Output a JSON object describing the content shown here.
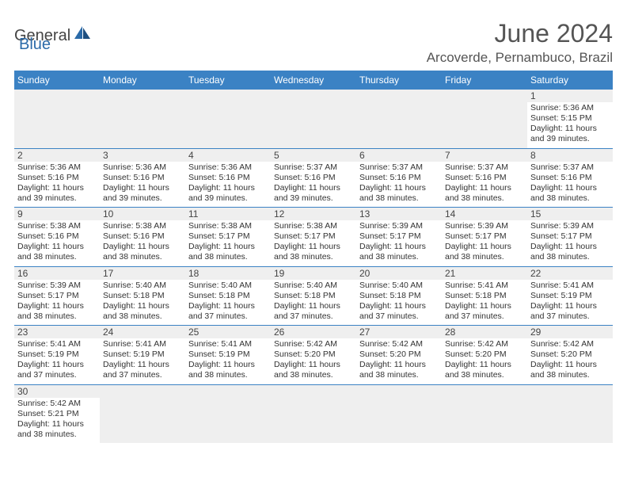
{
  "brand": {
    "part1": "General",
    "part2": "Blue"
  },
  "title": "June 2024",
  "location": "Arcoverde, Pernambuco, Brazil",
  "colors": {
    "header_bg": "#3b82c4",
    "header_text": "#ffffff",
    "rule": "#3b82c4",
    "muted_bg": "#efefef",
    "text": "#333333",
    "title_color": "#555555",
    "brand_blue": "#2b6aa8"
  },
  "typography": {
    "title_fontsize": 32,
    "location_fontsize": 17,
    "weekday_fontsize": 12,
    "daynum_fontsize": 12,
    "body_fontsize": 10.5
  },
  "weekdays": [
    "Sunday",
    "Monday",
    "Tuesday",
    "Wednesday",
    "Thursday",
    "Friday",
    "Saturday"
  ],
  "calendar": {
    "year": 2024,
    "month": 6,
    "first_weekday_index": 6,
    "days": [
      {
        "n": 1,
        "sunrise": "5:36 AM",
        "sunset": "5:15 PM",
        "daylight": "11 hours and 39 minutes."
      },
      {
        "n": 2,
        "sunrise": "5:36 AM",
        "sunset": "5:16 PM",
        "daylight": "11 hours and 39 minutes."
      },
      {
        "n": 3,
        "sunrise": "5:36 AM",
        "sunset": "5:16 PM",
        "daylight": "11 hours and 39 minutes."
      },
      {
        "n": 4,
        "sunrise": "5:36 AM",
        "sunset": "5:16 PM",
        "daylight": "11 hours and 39 minutes."
      },
      {
        "n": 5,
        "sunrise": "5:37 AM",
        "sunset": "5:16 PM",
        "daylight": "11 hours and 39 minutes."
      },
      {
        "n": 6,
        "sunrise": "5:37 AM",
        "sunset": "5:16 PM",
        "daylight": "11 hours and 38 minutes."
      },
      {
        "n": 7,
        "sunrise": "5:37 AM",
        "sunset": "5:16 PM",
        "daylight": "11 hours and 38 minutes."
      },
      {
        "n": 8,
        "sunrise": "5:37 AM",
        "sunset": "5:16 PM",
        "daylight": "11 hours and 38 minutes."
      },
      {
        "n": 9,
        "sunrise": "5:38 AM",
        "sunset": "5:16 PM",
        "daylight": "11 hours and 38 minutes."
      },
      {
        "n": 10,
        "sunrise": "5:38 AM",
        "sunset": "5:16 PM",
        "daylight": "11 hours and 38 minutes."
      },
      {
        "n": 11,
        "sunrise": "5:38 AM",
        "sunset": "5:17 PM",
        "daylight": "11 hours and 38 minutes."
      },
      {
        "n": 12,
        "sunrise": "5:38 AM",
        "sunset": "5:17 PM",
        "daylight": "11 hours and 38 minutes."
      },
      {
        "n": 13,
        "sunrise": "5:39 AM",
        "sunset": "5:17 PM",
        "daylight": "11 hours and 38 minutes."
      },
      {
        "n": 14,
        "sunrise": "5:39 AM",
        "sunset": "5:17 PM",
        "daylight": "11 hours and 38 minutes."
      },
      {
        "n": 15,
        "sunrise": "5:39 AM",
        "sunset": "5:17 PM",
        "daylight": "11 hours and 38 minutes."
      },
      {
        "n": 16,
        "sunrise": "5:39 AM",
        "sunset": "5:17 PM",
        "daylight": "11 hours and 38 minutes."
      },
      {
        "n": 17,
        "sunrise": "5:40 AM",
        "sunset": "5:18 PM",
        "daylight": "11 hours and 38 minutes."
      },
      {
        "n": 18,
        "sunrise": "5:40 AM",
        "sunset": "5:18 PM",
        "daylight": "11 hours and 37 minutes."
      },
      {
        "n": 19,
        "sunrise": "5:40 AM",
        "sunset": "5:18 PM",
        "daylight": "11 hours and 37 minutes."
      },
      {
        "n": 20,
        "sunrise": "5:40 AM",
        "sunset": "5:18 PM",
        "daylight": "11 hours and 37 minutes."
      },
      {
        "n": 21,
        "sunrise": "5:41 AM",
        "sunset": "5:18 PM",
        "daylight": "11 hours and 37 minutes."
      },
      {
        "n": 22,
        "sunrise": "5:41 AM",
        "sunset": "5:19 PM",
        "daylight": "11 hours and 37 minutes."
      },
      {
        "n": 23,
        "sunrise": "5:41 AM",
        "sunset": "5:19 PM",
        "daylight": "11 hours and 37 minutes."
      },
      {
        "n": 24,
        "sunrise": "5:41 AM",
        "sunset": "5:19 PM",
        "daylight": "11 hours and 37 minutes."
      },
      {
        "n": 25,
        "sunrise": "5:41 AM",
        "sunset": "5:19 PM",
        "daylight": "11 hours and 38 minutes."
      },
      {
        "n": 26,
        "sunrise": "5:42 AM",
        "sunset": "5:20 PM",
        "daylight": "11 hours and 38 minutes."
      },
      {
        "n": 27,
        "sunrise": "5:42 AM",
        "sunset": "5:20 PM",
        "daylight": "11 hours and 38 minutes."
      },
      {
        "n": 28,
        "sunrise": "5:42 AM",
        "sunset": "5:20 PM",
        "daylight": "11 hours and 38 minutes."
      },
      {
        "n": 29,
        "sunrise": "5:42 AM",
        "sunset": "5:20 PM",
        "daylight": "11 hours and 38 minutes."
      },
      {
        "n": 30,
        "sunrise": "5:42 AM",
        "sunset": "5:21 PM",
        "daylight": "11 hours and 38 minutes."
      }
    ]
  },
  "labels": {
    "sunrise_prefix": "Sunrise: ",
    "sunset_prefix": "Sunset: ",
    "daylight_prefix": "Daylight: "
  }
}
